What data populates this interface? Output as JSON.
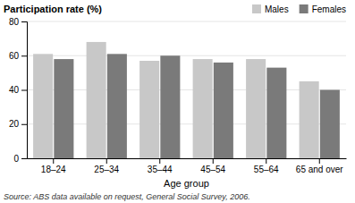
{
  "chart_data": {
    "type": "bar",
    "title": "Participation rate (%)",
    "xlabel": "Age group",
    "categories": [
      "18–24",
      "25–34",
      "35–44",
      "45–54",
      "55–64",
      "65 and over"
    ],
    "series": [
      {
        "name": "Males",
        "color": "#c8c8c8",
        "values": [
          61,
          68,
          57,
          58,
          58,
          45
        ]
      },
      {
        "name": "Females",
        "color": "#7a7a7a",
        "values": [
          58,
          61,
          60,
          56,
          53,
          40
        ]
      }
    ],
    "ylim": [
      0,
      80
    ],
    "yticks": [
      0,
      20,
      40,
      60,
      80
    ],
    "grid": true,
    "legend": "upper right",
    "annotations": [
      "Source: ABS data available on request, General Social Survey, 2006."
    ]
  }
}
